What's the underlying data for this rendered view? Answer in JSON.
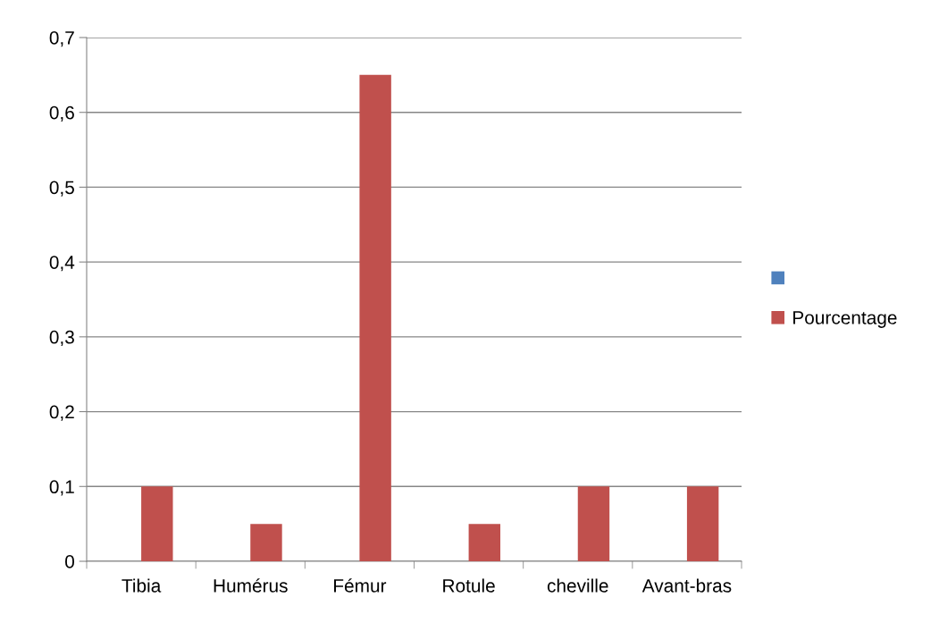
{
  "chart_data": {
    "type": "bar",
    "categories": [
      "Tibia",
      "Humérus",
      "Fémur",
      "Rotule",
      "cheville",
      "Avant-bras"
    ],
    "series": [
      {
        "color": "#4f81bd",
        "values": [
          null,
          null,
          null,
          null,
          null,
          null
        ]
      },
      {
        "name": "Pourcentage",
        "color": "#c0504d",
        "values": [
          0.1,
          0.05,
          0.65,
          0.05,
          0.1,
          0.1
        ]
      }
    ],
    "ylim": [
      0,
      0.7
    ],
    "yticks": [
      0,
      {
        "value": 0.1,
        "label": "0,1"
      },
      {
        "value": 0.2,
        "label": "0,2"
      },
      {
        "value": 0.3,
        "label": "0,3"
      },
      {
        "value": 0.4,
        "label": "0,4"
      },
      {
        "value": 0.5,
        "label": "0,5"
      },
      {
        "value": 0.6,
        "label": "0,6"
      },
      {
        "value": 0.7,
        "label": "0,7"
      }
    ],
    "grid": "y",
    "legend": "right"
  }
}
